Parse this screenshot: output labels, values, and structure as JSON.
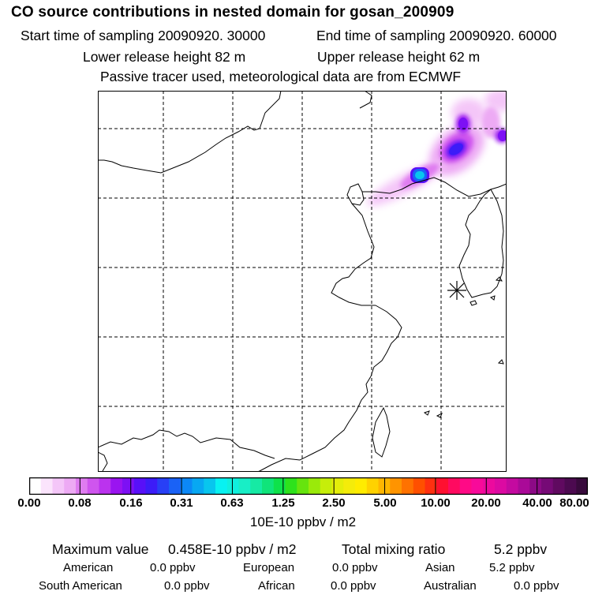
{
  "header": {
    "title": "CO  source contributions in nested domain for gosan_200909",
    "start_time": "Start time of sampling 20090920. 30000",
    "end_time": "End time of sampling 20090920. 60000",
    "lower_height": "Lower release height   82 m",
    "upper_height": "Upper release height   62 m",
    "tracer_note": "Passive tracer used, meteorological data are from ECMWF"
  },
  "map": {
    "station_marker": "asterisk-icon"
  },
  "colorbar": {
    "ticks": [
      "0.00",
      "0.08",
      "0.16",
      "0.31",
      "0.63",
      "1.25",
      "2.50",
      "5.00",
      "10.00",
      "20.00",
      "40.00",
      "80.00"
    ],
    "units": "10E-10 ppbv / m2",
    "colors": [
      "#ffffff",
      "#fbe4fc",
      "#f4c6f8",
      "#edaaf4",
      "#df7cf0",
      "#cf55ee",
      "#bb33ee",
      "#9a14f0",
      "#7d10f4",
      "#5810f8",
      "#3c1cf8",
      "#2840f6",
      "#1a62f6",
      "#0c88f6",
      "#08a8f2",
      "#08c6ee",
      "#08f2f2",
      "#10f0de",
      "#18eec6",
      "#16eaa4",
      "#10e47a",
      "#0ee24a",
      "#2ee21c",
      "#66e40e",
      "#9aea0a",
      "#c6ee0a",
      "#e4ee0a",
      "#f4ec0a",
      "#ffec00",
      "#ffd200",
      "#ffb600",
      "#ff9400",
      "#ff7200",
      "#ff5000",
      "#ff3010",
      "#ff1030",
      "#ff0a60",
      "#ff0a86",
      "#f80a9a",
      "#ec0a9e",
      "#dc0aa2",
      "#c40aa0",
      "#aa0a98",
      "#8c0a86",
      "#760a76",
      "#600a60",
      "#4c0a50",
      "#380a3c"
    ]
  },
  "summary": {
    "max_label": "Maximum value",
    "max_value": "0.458E-10 ppbv / m2",
    "total_label": "Total mixing ratio",
    "total_value": "5.2 ppbv",
    "regions": [
      {
        "label": "American",
        "value": "0.0 ppbv"
      },
      {
        "label": "European",
        "value": "0.0 ppbv"
      },
      {
        "label": "Asian",
        "value": "5.2 ppbv"
      },
      {
        "label": "South American",
        "value": "0.0 ppbv"
      },
      {
        "label": "African",
        "value": "0.0 ppbv"
      },
      {
        "label": "Australian",
        "value": "0.0 ppbv"
      }
    ]
  }
}
